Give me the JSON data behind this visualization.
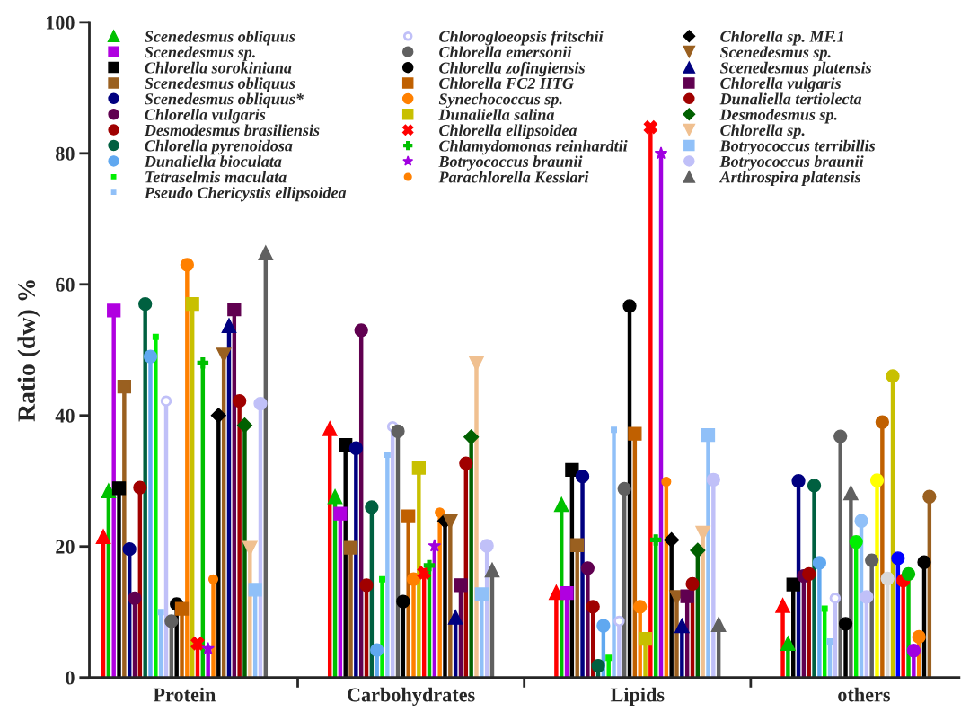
{
  "chart_data": {
    "type": "lollipop",
    "ylabel": "Ratio (dw) %",
    "categories": [
      "Protein",
      "Carbohydrates",
      "Lipids",
      "others"
    ],
    "ylim": [
      0,
      100
    ],
    "yticks": [
      0,
      20,
      40,
      60,
      80,
      100
    ],
    "grid": false,
    "legend": "top left",
    "series": [
      {
        "color": "#ff0000",
        "marker": "triangle",
        "values": [
          21.5,
          38,
          13,
          11
        ]
      },
      {
        "name": "Scenedesmus obliquus",
        "color": "#00c000",
        "marker": "triangle",
        "values": [
          28.5,
          27.6,
          26.4,
          5.2
        ]
      },
      {
        "name": "Scenedesmus sp.",
        "color": "#b000e0",
        "marker": "square",
        "values": [
          56,
          25,
          12.9,
          null
        ]
      },
      {
        "name": "Chlorella sorokiniana",
        "color": "#000000",
        "marker": "square",
        "values": [
          28.9,
          35.5,
          31.7,
          14.2
        ]
      },
      {
        "name": "Scenedesmus obliquus",
        "color": "#9a6020",
        "marker": "square",
        "values": [
          44.4,
          19.8,
          20.2,
          null
        ]
      },
      {
        "name": "Scenedesmus obliquus*",
        "color": "#000080",
        "marker": "circle",
        "values": [
          19.6,
          35,
          30.7,
          30
        ]
      },
      {
        "name": "Chlorella vulgaris",
        "color": "#600050",
        "marker": "circle",
        "values": [
          12.1,
          53,
          16.7,
          15.5
        ]
      },
      {
        "name": "Desmodesmus brasiliensis",
        "color": "#a00000",
        "marker": "circle",
        "values": [
          29,
          14.1,
          10.8,
          15.8
        ]
      },
      {
        "name": "Chlorella pyrenoidosa",
        "color": "#006040",
        "marker": "circle",
        "values": [
          57,
          26,
          1.8,
          29.3
        ]
      },
      {
        "name": "Dunaliella bioculata",
        "color": "#60a8f0",
        "marker": "circle",
        "values": [
          49,
          4.2,
          7.9,
          17.5
        ]
      },
      {
        "name": "Tetraselmis maculata",
        "color": "#00ee00",
        "marker": "square",
        "values": [
          52,
          15,
          3,
          10.5
        ]
      },
      {
        "name": "Pseudo Chericystis ellipsoidea",
        "color": "#90c0f8",
        "marker": "square",
        "values": [
          10,
          34,
          37.8,
          5.5
        ]
      },
      {
        "name": "Chlorogloeopsis fritschii",
        "color": "#c0c0f8",
        "marker": "open_circle",
        "values": [
          42.2,
          38.3,
          8.6,
          12.1
        ]
      },
      {
        "name": "Chlorella emersonii",
        "color": "#606060",
        "marker": "circle",
        "values": [
          8.6,
          37.6,
          28.8,
          36.8
        ]
      },
      {
        "name": "Chlorella zofingiensis",
        "color": "#000000",
        "marker": "circle",
        "values": [
          11.2,
          11.6,
          56.7,
          8.2
        ]
      },
      {
        "name": "Chlorella FC2 IITG",
        "color": "#c06000",
        "marker": "square",
        "values": [
          10.5,
          24.6,
          37.2,
          null
        ]
      },
      {
        "name": "Synechococcus sp.",
        "color": "#ff8000",
        "marker": "circle",
        "values": [
          63,
          15,
          10.8,
          null
        ]
      },
      {
        "name": "Dunaliella salina",
        "color": "#c8c000",
        "marker": "square",
        "values": [
          57,
          32,
          5.9,
          null
        ]
      },
      {
        "name": "Chlorella ellipsoidea",
        "color": "#ff0000",
        "marker": "x",
        "values": [
          5.2,
          16,
          84,
          null
        ]
      },
      {
        "name": "Chlamydomonas reinhardtii",
        "color": "#00c000",
        "marker": "plus",
        "values": [
          48,
          17.1,
          21,
          null
        ]
      },
      {
        "name": "Botryococcus braunii",
        "color": "#a000e0",
        "marker": "star",
        "values": [
          4.4,
          20.1,
          80,
          null
        ]
      },
      {
        "name": "Parachlorella Kesslari",
        "color": "#ff8000",
        "marker": "small_circle",
        "values": [
          15,
          25.2,
          29.9,
          null
        ]
      },
      {
        "name": "Chlorella sp. MF.1",
        "color": "#000000",
        "marker": "diamond",
        "values": [
          40,
          23.9,
          21,
          null
        ]
      },
      {
        "name": "Scenedesmus sp.",
        "color": "#9a6020",
        "marker": "triangle_down",
        "values": [
          49.2,
          23.8,
          12.2,
          null
        ]
      },
      {
        "name": "Scenedesmus platensis",
        "color": "#000080",
        "marker": "triangle",
        "values": [
          53.7,
          9.2,
          7.9,
          null
        ]
      },
      {
        "name": "Chlorella vulgaris",
        "color": "#600050",
        "marker": "square",
        "values": [
          56.2,
          14.1,
          12.4,
          null
        ]
      },
      {
        "name": "Dunaliella tertiolecta",
        "color": "#a00000",
        "marker": "circle",
        "values": [
          42.2,
          32.7,
          14.3,
          null
        ]
      },
      {
        "name": "Desmodesmus sp.",
        "color": "#006000",
        "marker": "diamond",
        "values": [
          38.5,
          36.7,
          19.4,
          null
        ]
      },
      {
        "name": "Chlorella sp.",
        "color": "#f0c090",
        "marker": "triangle_down",
        "values": [
          19.7,
          47.9,
          22,
          null
        ]
      },
      {
        "name": "Botryococcus terribillis",
        "color": "#90c0f8",
        "marker": "square",
        "values": [
          13.4,
          12.7,
          37,
          null
        ]
      },
      {
        "name": "Botryococcus braunii",
        "color": "#c0c0f8",
        "marker": "circle",
        "values": [
          41.8,
          20.1,
          30.2,
          null
        ]
      },
      {
        "name": "Arthrospira platensis",
        "color": "#606060",
        "marker": "triangle",
        "values": [
          64.8,
          16.4,
          8.1,
          28.2
        ]
      },
      {
        "color": "#00ee00",
        "marker": "circle",
        "values": [
          null,
          null,
          null,
          20.7
        ]
      },
      {
        "color": "#90c0f8",
        "marker": "circle",
        "values": [
          null,
          null,
          null,
          23.9
        ]
      },
      {
        "color": "#c0c0f8",
        "marker": "circle",
        "values": [
          null,
          null,
          null,
          12.3
        ]
      },
      {
        "color": "#606060",
        "marker": "circle",
        "values": [
          null,
          null,
          null,
          17.9
        ]
      },
      {
        "color": "#ffff00",
        "marker": "circle",
        "values": [
          null,
          null,
          null,
          30.1
        ]
      },
      {
        "color": "#c06000",
        "marker": "circle",
        "values": [
          null,
          null,
          null,
          39
        ]
      },
      {
        "color": "#d8d8d8",
        "marker": "circle",
        "values": [
          null,
          null,
          null,
          15.1
        ]
      },
      {
        "color": "#c8c000",
        "marker": "circle",
        "values": [
          null,
          null,
          null,
          46
        ]
      },
      {
        "color": "#0000ff",
        "marker": "circle",
        "values": [
          null,
          null,
          null,
          18.2
        ]
      },
      {
        "color": "#ff0000",
        "marker": "circle",
        "values": [
          null,
          null,
          null,
          14.8
        ]
      },
      {
        "color": "#00c000",
        "marker": "circle",
        "values": [
          null,
          null,
          null,
          15.8
        ]
      },
      {
        "color": "#a000e0",
        "marker": "circle",
        "values": [
          null,
          null,
          null,
          4.1
        ]
      },
      {
        "color": "#ff8000",
        "marker": "circle",
        "values": [
          null,
          null,
          null,
          6.2
        ]
      },
      {
        "color": "#000000",
        "marker": "circle",
        "values": [
          null,
          null,
          null,
          17.6
        ]
      },
      {
        "color": "#9a6020",
        "marker": "circle",
        "values": [
          null,
          null,
          null,
          27.6
        ]
      }
    ]
  }
}
